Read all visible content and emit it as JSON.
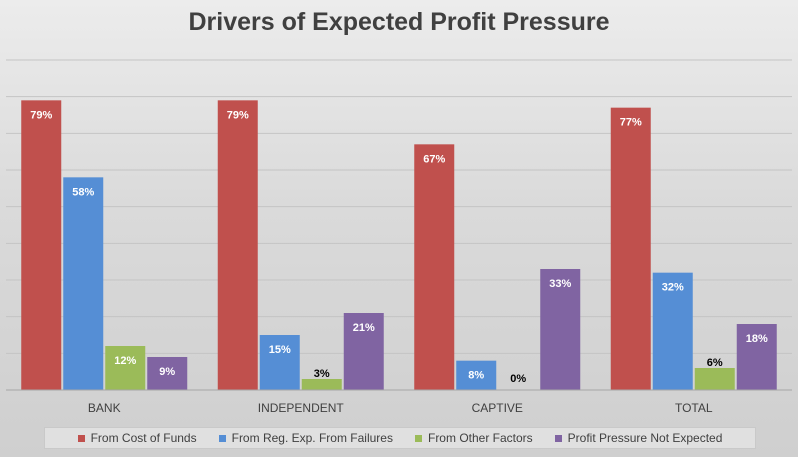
{
  "chart_data": {
    "type": "bar",
    "title": "Drivers of Expected Profit Pressure",
    "categories": [
      "BANK",
      "INDEPENDENT",
      "CAPTIVE",
      "TOTAL"
    ],
    "series": [
      {
        "name": "From Cost of Funds",
        "color": "#c0504d",
        "values": [
          79,
          79,
          67,
          77
        ],
        "labels": [
          "79%",
          "79%",
          "67%",
          "77%"
        ]
      },
      {
        "name": "From Reg. Exp. From Failures",
        "color": "#558ed5",
        "values": [
          58,
          15,
          8,
          32
        ],
        "labels": [
          "58%",
          "15%",
          "8%",
          "32%"
        ]
      },
      {
        "name": "From Other Factors",
        "color": "#9bbb59",
        "values": [
          12,
          3,
          0,
          6
        ],
        "labels": [
          "12%",
          "3%",
          "0%",
          "6%"
        ]
      },
      {
        "name": "Profit Pressure Not Expected",
        "color": "#8064a2",
        "values": [
          9,
          21,
          33,
          18
        ],
        "labels": [
          "9%",
          "21%",
          "33%",
          "18%"
        ]
      }
    ],
    "ylim": [
      0,
      90
    ],
    "grid": true,
    "legend_position": "bottom"
  }
}
